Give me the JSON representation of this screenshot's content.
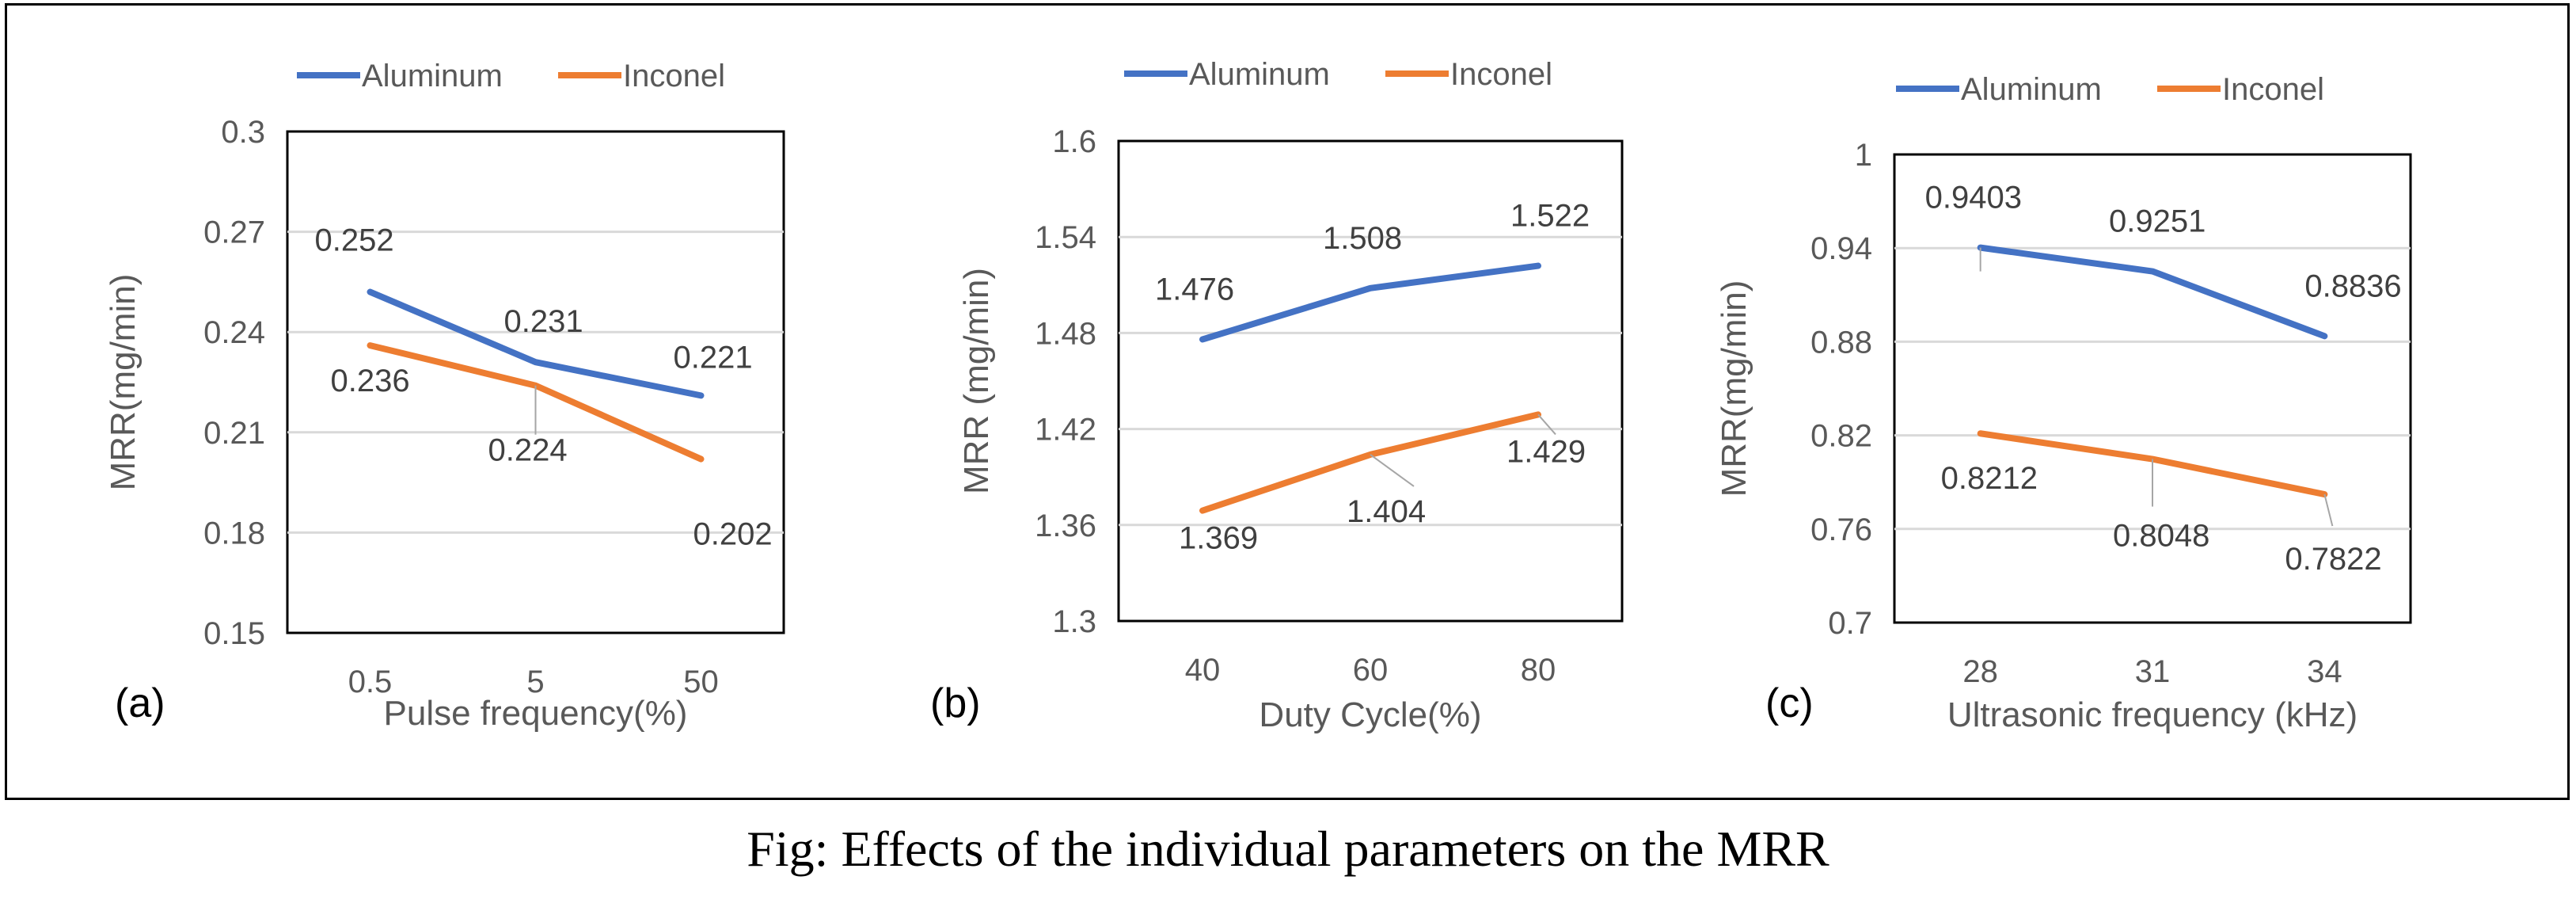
{
  "caption": "Fig: Effects of the individual parameters on the MRR",
  "colors": {
    "aluminum": "#4472C4",
    "inconel": "#ED7D31",
    "grid": "#D9D9D9",
    "text": "#595959"
  },
  "chart_data": [
    {
      "type": "line",
      "panel_label": "(a)",
      "xlabel": "Pulse frequency(%)",
      "ylabel": "MRR(mg/min)",
      "categories": [
        "0.5",
        "5",
        "50"
      ],
      "ylim": [
        0.15,
        0.3
      ],
      "yticks": [
        "0.3",
        "0.27",
        "0.24",
        "0.21",
        "0.18",
        "0.15"
      ],
      "grid": true,
      "legend": "top",
      "series": [
        {
          "name": "Aluminum",
          "values": [
            0.252,
            0.231,
            0.221
          ],
          "labels": [
            "0.252",
            "0.231",
            "0.221"
          ]
        },
        {
          "name": "Inconel",
          "values": [
            0.236,
            0.224,
            0.202
          ],
          "labels": [
            "0.236",
            "0.224",
            "0.202"
          ]
        }
      ]
    },
    {
      "type": "line",
      "panel_label": "(b)",
      "xlabel": "Duty Cycle(%)",
      "ylabel": "MRR (mg/min)",
      "categories": [
        "40",
        "60",
        "80"
      ],
      "ylim": [
        1.3,
        1.6
      ],
      "yticks": [
        "1.6",
        "1.54",
        "1.48",
        "1.42",
        "1.36",
        "1.3"
      ],
      "grid": true,
      "legend": "top",
      "series": [
        {
          "name": "Aluminum",
          "values": [
            1.476,
            1.508,
            1.522
          ],
          "labels": [
            "1.476",
            "1.508",
            "1.522"
          ]
        },
        {
          "name": "Inconel",
          "values": [
            1.369,
            1.404,
            1.429
          ],
          "labels": [
            "1.369",
            "1.404",
            "1.429"
          ]
        }
      ]
    },
    {
      "type": "line",
      "panel_label": "(c)",
      "xlabel": "Ultrasonic frequency (kHz)",
      "ylabel": "MRR(mg/min)",
      "categories": [
        "28",
        "31",
        "34"
      ],
      "ylim": [
        0.7,
        1.0
      ],
      "yticks": [
        "1",
        "0.94",
        "0.88",
        "0.82",
        "0.76",
        "0.7"
      ],
      "grid": true,
      "legend": "top",
      "series": [
        {
          "name": "Aluminum",
          "values": [
            0.9403,
            0.9251,
            0.8836
          ],
          "labels": [
            "0.9403",
            "0.9251",
            "0.8836"
          ]
        },
        {
          "name": "Inconel",
          "values": [
            0.8212,
            0.8048,
            0.7822
          ],
          "labels": [
            "0.8212",
            "0.8048",
            "0.7822"
          ]
        }
      ]
    }
  ]
}
